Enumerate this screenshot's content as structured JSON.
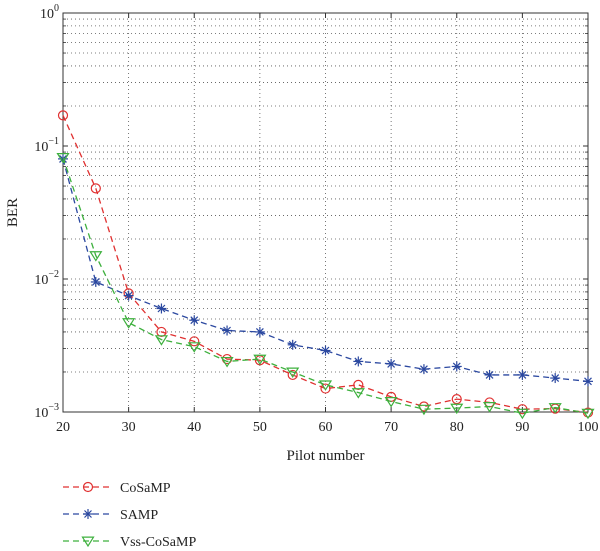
{
  "chart_data": {
    "type": "line",
    "title": "",
    "xlabel": "Pilot number",
    "ylabel": "BER",
    "xlim": [
      20,
      100
    ],
    "ylim": [
      0.001,
      1
    ],
    "yscale": "log",
    "grid": true,
    "legend_position": "bottom-left, below plot",
    "x_ticks": [
      "20",
      "30",
      "40",
      "50",
      "60",
      "70",
      "80",
      "90",
      "100"
    ],
    "y_ticks": [
      {
        "base": "10",
        "exp": "0"
      },
      {
        "base": "10",
        "exp": "−1"
      },
      {
        "base": "10",
        "exp": "−2"
      },
      {
        "base": "10",
        "exp": "−3"
      }
    ],
    "x": [
      20,
      25,
      30,
      35,
      40,
      45,
      50,
      55,
      60,
      65,
      70,
      75,
      80,
      85,
      90,
      95,
      100
    ],
    "series": [
      {
        "name": "CoSaMP",
        "color": "#e03030",
        "marker": "circle",
        "values": [
          0.17,
          0.048,
          0.0078,
          0.004,
          0.0034,
          0.0025,
          0.00245,
          0.0019,
          0.0015,
          0.0016,
          0.0013,
          0.0011,
          0.00125,
          0.00118,
          0.00105,
          0.00106,
          0.00099
        ]
      },
      {
        "name": "SAMP",
        "color": "#2b48a0",
        "marker": "star",
        "values": [
          0.08,
          0.0095,
          0.0075,
          0.006,
          0.0049,
          0.0041,
          0.004,
          0.0032,
          0.0029,
          0.0024,
          0.0023,
          0.0021,
          0.0022,
          0.0019,
          0.0019,
          0.0018,
          0.0017
        ]
      },
      {
        "name": "Vss-CoSaMP",
        "color": "#3db03d",
        "marker": "triangle-down",
        "values": [
          0.082,
          0.015,
          0.0047,
          0.0035,
          0.0031,
          0.0024,
          0.0025,
          0.002,
          0.0016,
          0.0014,
          0.0012,
          0.00105,
          0.00107,
          0.0011,
          0.00098,
          0.00108,
          0.00098
        ]
      }
    ]
  }
}
